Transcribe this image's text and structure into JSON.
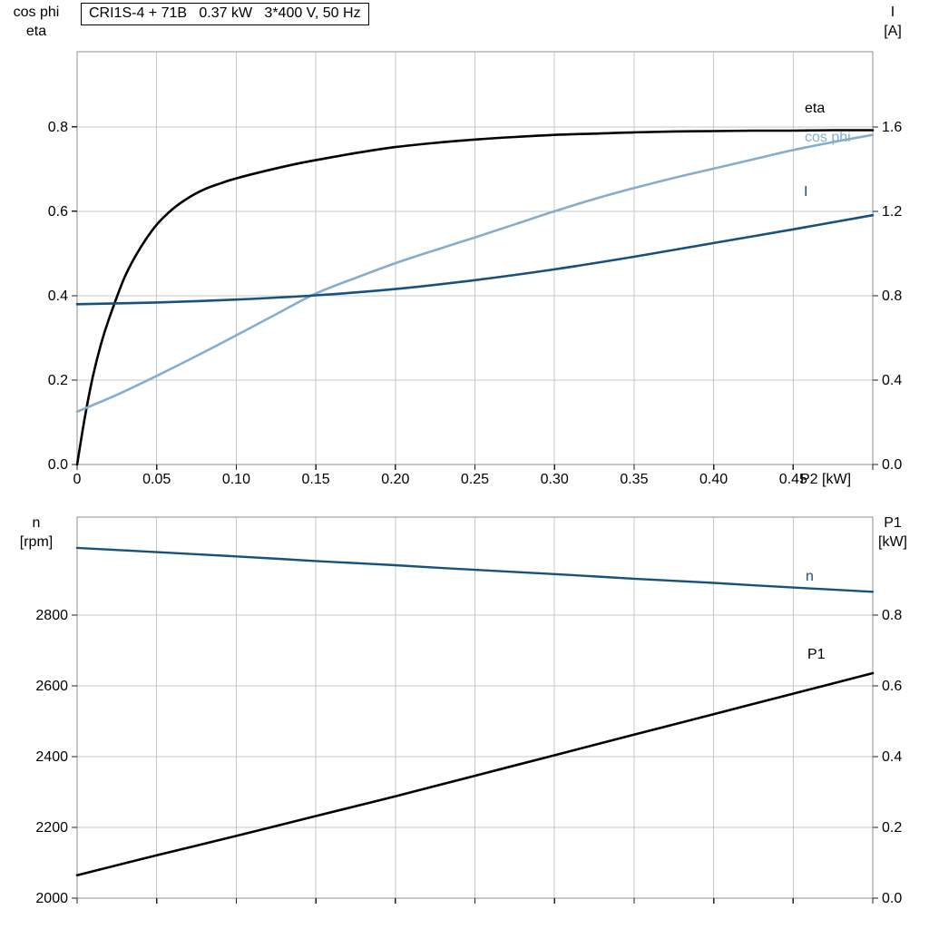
{
  "title_box": {
    "text": "CRI1S-4 + 71B   0.37 kW   3*400 V, 50 Hz"
  },
  "colors": {
    "black": "#000000",
    "light_blue": "#85adce",
    "dark_blue": "#17517e",
    "grid": "#c8c8c8",
    "border": "#8f8f8f",
    "tick": "#222222",
    "text": "#000000",
    "background": "#ffffff"
  },
  "axis_corner_labels": {
    "top_left": [
      "cos phi",
      "eta"
    ],
    "top_right": [
      "I",
      "[A]"
    ],
    "bottom_left": [
      "n",
      "[rpm]"
    ],
    "bottom_right": [
      "P1",
      "[kW]"
    ]
  },
  "chart_data": [
    {
      "type": "line",
      "title": "CRI1S-4 + 71B   0.37 kW   3*400 V, 50 Hz",
      "xlabel": "P2 [kW]",
      "ylabel_left": "cos phi / eta",
      "ylabel_right": "I [A]",
      "grid": true,
      "legend_position": "right-inline",
      "x_axis": {
        "lim": [
          0,
          0.5
        ],
        "ticks": [
          0,
          0.05,
          0.1,
          0.15,
          0.2,
          0.25,
          0.3,
          0.35,
          0.4,
          0.45,
          0.5
        ],
        "tick_labels": [
          "0",
          "0.05",
          "0.10",
          "0.15",
          "0.20",
          "0.25",
          "0.30",
          "0.35",
          "0.40",
          "0.45",
          null
        ],
        "label": "P2 [kW]"
      },
      "left_axis": {
        "lim": [
          0,
          0.978
        ],
        "ticks": [
          0,
          0.2,
          0.4,
          0.6,
          0.8
        ],
        "tick_labels": [
          "0.0",
          "0.2",
          "0.4",
          "0.6",
          "0.8"
        ]
      },
      "right_axis": {
        "lim": [
          0,
          1.957
        ],
        "ticks": [
          0,
          0.4,
          0.8,
          1.2,
          1.6
        ],
        "tick_labels": [
          "0.0",
          "0.4",
          "0.8",
          "1.2",
          "1.6"
        ]
      },
      "series": [
        {
          "name": "eta",
          "axis": "left",
          "color": "black",
          "width": 2.6,
          "label_xy": [
            887,
            124
          ],
          "points": [
            [
              0,
              0
            ],
            [
              0.005,
              0.115
            ],
            [
              0.01,
              0.21
            ],
            [
              0.015,
              0.285
            ],
            [
              0.02,
              0.345
            ],
            [
              0.03,
              0.445
            ],
            [
              0.04,
              0.515
            ],
            [
              0.05,
              0.568
            ],
            [
              0.06,
              0.605
            ],
            [
              0.07,
              0.632
            ],
            [
              0.08,
              0.652
            ],
            [
              0.09,
              0.666
            ],
            [
              0.1,
              0.678
            ],
            [
              0.12,
              0.697
            ],
            [
              0.14,
              0.714
            ],
            [
              0.16,
              0.728
            ],
            [
              0.18,
              0.741
            ],
            [
              0.2,
              0.752
            ],
            [
              0.225,
              0.762
            ],
            [
              0.25,
              0.77
            ],
            [
              0.275,
              0.776
            ],
            [
              0.3,
              0.781
            ],
            [
              0.325,
              0.784
            ],
            [
              0.35,
              0.787
            ],
            [
              0.375,
              0.789
            ],
            [
              0.4,
              0.79
            ],
            [
              0.425,
              0.791
            ],
            [
              0.45,
              0.791
            ],
            [
              0.475,
              0.792
            ],
            [
              0.5,
              0.792
            ]
          ]
        },
        {
          "name": "cos phi",
          "axis": "left",
          "color": "light_blue",
          "width": 2.6,
          "label_xy": [
            887,
            156
          ],
          "points": [
            [
              0,
              0.125
            ],
            [
              0.025,
              0.165
            ],
            [
              0.05,
              0.21
            ],
            [
              0.075,
              0.257
            ],
            [
              0.1,
              0.306
            ],
            [
              0.125,
              0.356
            ],
            [
              0.15,
              0.405
            ],
            [
              0.175,
              0.442
            ],
            [
              0.2,
              0.477
            ],
            [
              0.225,
              0.508
            ],
            [
              0.25,
              0.538
            ],
            [
              0.275,
              0.569
            ],
            [
              0.3,
              0.6
            ],
            [
              0.325,
              0.629
            ],
            [
              0.35,
              0.655
            ],
            [
              0.375,
              0.679
            ],
            [
              0.4,
              0.701
            ],
            [
              0.425,
              0.723
            ],
            [
              0.45,
              0.745
            ],
            [
              0.475,
              0.764
            ],
            [
              0.5,
              0.781
            ]
          ]
        },
        {
          "name": "I",
          "axis": "right",
          "color": "dark_blue",
          "width": 2.6,
          "label_xy": [
            886,
            216
          ],
          "points": [
            [
              0,
              0.76
            ],
            [
              0.05,
              0.768
            ],
            [
              0.1,
              0.782
            ],
            [
              0.15,
              0.802
            ],
            [
              0.2,
              0.832
            ],
            [
              0.25,
              0.874
            ],
            [
              0.3,
              0.925
            ],
            [
              0.35,
              0.985
            ],
            [
              0.4,
              1.05
            ],
            [
              0.45,
              1.115
            ],
            [
              0.5,
              1.182
            ]
          ]
        }
      ]
    },
    {
      "type": "line",
      "title": "",
      "xlabel": "",
      "ylabel_left": "n [rpm]",
      "ylabel_right": "P1 [kW]",
      "grid": true,
      "legend_position": "right-inline",
      "x_axis": {
        "lim": [
          0,
          0.5
        ],
        "ticks": [
          0,
          0.05,
          0.1,
          0.15,
          0.2,
          0.25,
          0.3,
          0.35,
          0.4,
          0.45,
          0.5
        ],
        "tick_labels": []
      },
      "left_axis": {
        "lim": [
          2000,
          3077
        ],
        "ticks": [
          2000,
          2200,
          2400,
          2600,
          2800
        ],
        "tick_labels": [
          "2000",
          "2200",
          "2400",
          "2600",
          "2800"
        ]
      },
      "right_axis": {
        "lim": [
          0,
          1.077
        ],
        "ticks": [
          0,
          0.2,
          0.4,
          0.6,
          0.8
        ],
        "tick_labels": [
          "0.0",
          "0.2",
          "0.4",
          "0.6",
          "0.8"
        ]
      },
      "series": [
        {
          "name": "n",
          "axis": "left",
          "color": "dark_blue",
          "width": 2.4,
          "label_xy": [
            888,
            80
          ],
          "points": [
            [
              0,
              2990
            ],
            [
              0.05,
              2978
            ],
            [
              0.1,
              2966
            ],
            [
              0.15,
              2953
            ],
            [
              0.2,
              2941
            ],
            [
              0.25,
              2928
            ],
            [
              0.3,
              2916
            ],
            [
              0.35,
              2903
            ],
            [
              0.4,
              2891
            ],
            [
              0.45,
              2878
            ],
            [
              0.5,
              2866
            ]
          ]
        },
        {
          "name": "P1",
          "axis": "right",
          "color": "black",
          "width": 2.6,
          "label_xy": [
            890,
            166
          ],
          "points": [
            [
              0,
              0.065
            ],
            [
              0.05,
              0.121
            ],
            [
              0.1,
              0.176
            ],
            [
              0.15,
              0.232
            ],
            [
              0.2,
              0.288
            ],
            [
              0.25,
              0.346
            ],
            [
              0.3,
              0.404
            ],
            [
              0.35,
              0.462
            ],
            [
              0.4,
              0.52
            ],
            [
              0.45,
              0.578
            ],
            [
              0.5,
              0.636
            ]
          ]
        }
      ]
    }
  ]
}
